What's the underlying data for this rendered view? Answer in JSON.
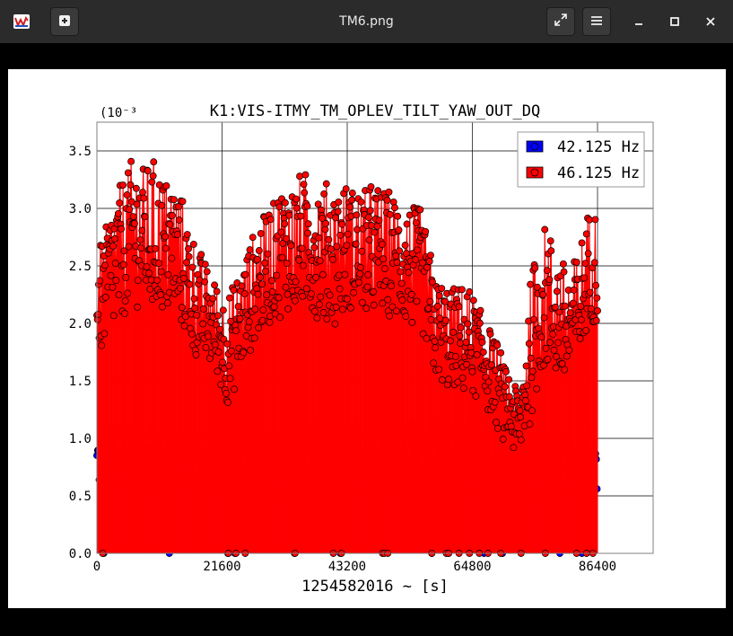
{
  "window": {
    "title": "TM6.png",
    "buttons": [
      "new-tab",
      "fullscreen",
      "menu",
      "minimize",
      "maximize",
      "close"
    ]
  },
  "chart_data": {
    "type": "scatter",
    "title": "K1:VIS-ITMY_TM_OPLEV_TILT_YAW_OUT_DQ",
    "xlabel": "1254582016 ~ [s]",
    "ylabel": "",
    "y_multiplier": "(10⁻³",
    "xlim": [
      0,
      96000
    ],
    "ylim": [
      0,
      0.00375
    ],
    "xticks": [
      "0",
      "21600",
      "43200",
      "64800",
      "86400"
    ],
    "xtick_values": [
      0,
      21600,
      43200,
      64800,
      86400
    ],
    "yticks": [
      "0.0",
      "0.5",
      "1.0",
      "1.5",
      "2.0",
      "2.5",
      "3.0",
      "3.5"
    ],
    "ytick_values": [
      0,
      0.0005,
      0.001,
      0.0015,
      0.002,
      0.0025,
      0.003,
      0.0035
    ],
    "grid": true,
    "legend_position": "top-right",
    "stem": true,
    "series": [
      {
        "name": "42.125 Hz",
        "color": "#0000ff",
        "envelope": [
          [
            0,
            0.00052,
            0.00105
          ],
          [
            4000,
            0.00048,
            0.0011
          ],
          [
            8000,
            0.0005,
            0.00108
          ],
          [
            12000,
            0.00045,
            0.00105
          ],
          [
            16000,
            0.00042,
            0.001
          ],
          [
            20000,
            0.0004,
            0.00098
          ],
          [
            24000,
            0.00038,
            0.00095
          ],
          [
            28000,
            0.00045,
            0.001
          ],
          [
            32000,
            0.0005,
            0.00105
          ],
          [
            36000,
            0.00052,
            0.00108
          ],
          [
            40000,
            0.00055,
            0.00112
          ],
          [
            44000,
            0.00055,
            0.00112
          ],
          [
            48000,
            0.00052,
            0.0011
          ],
          [
            52000,
            0.00055,
            0.00112
          ],
          [
            56000,
            0.00055,
            0.00115
          ],
          [
            60000,
            0.00052,
            0.00112
          ],
          [
            64000,
            0.0005,
            0.0011
          ],
          [
            68000,
            0.00045,
            0.00105
          ],
          [
            72000,
            0.0004,
            0.00095
          ],
          [
            76000,
            0.00045,
            0.001
          ],
          [
            80000,
            0.0005,
            0.00105
          ],
          [
            84000,
            0.0005,
            0.00105
          ],
          [
            86400,
            0.0005,
            0.00105
          ]
        ],
        "zero_dropouts": [
          1200,
          12500,
          22600,
          23800,
          34100,
          42000,
          57800,
          60700,
          66800,
          70000,
          79900,
          83700
        ]
      },
      {
        "name": "46.125 Hz",
        "color": "#ff0000",
        "envelope": [
          [
            0,
            0.0017,
            0.0026
          ],
          [
            3000,
            0.0019,
            0.0031
          ],
          [
            6000,
            0.0022,
            0.0034
          ],
          [
            10000,
            0.0021,
            0.0034
          ],
          [
            14000,
            0.002,
            0.0032
          ],
          [
            17000,
            0.0017,
            0.0027
          ],
          [
            20000,
            0.0016,
            0.0024
          ],
          [
            22500,
            0.0013,
            0.0022
          ],
          [
            25000,
            0.0016,
            0.0025
          ],
          [
            28000,
            0.0019,
            0.0029
          ],
          [
            32000,
            0.0021,
            0.0032
          ],
          [
            36000,
            0.0021,
            0.0033
          ],
          [
            40000,
            0.002,
            0.0032
          ],
          [
            44000,
            0.0021,
            0.0032
          ],
          [
            48000,
            0.0021,
            0.0032
          ],
          [
            52000,
            0.002,
            0.0031
          ],
          [
            56000,
            0.0019,
            0.003
          ],
          [
            58500,
            0.0015,
            0.0024
          ],
          [
            61000,
            0.0014,
            0.0023
          ],
          [
            64000,
            0.0014,
            0.0023
          ],
          [
            67000,
            0.0013,
            0.0021
          ],
          [
            70000,
            0.001,
            0.0017
          ],
          [
            73000,
            0.0008,
            0.0014
          ],
          [
            75000,
            0.0012,
            0.0025
          ],
          [
            77000,
            0.0016,
            0.0029
          ],
          [
            79000,
            0.0015,
            0.0027
          ],
          [
            81000,
            0.0014,
            0.0025
          ],
          [
            83000,
            0.0016,
            0.0026
          ],
          [
            85000,
            0.002,
            0.003
          ],
          [
            86400,
            0.002,
            0.003
          ]
        ],
        "zero_dropouts": [
          1000,
          22700,
          24000,
          25600,
          34200,
          40800,
          42200,
          49300,
          49600,
          50200,
          57800,
          60300,
          60700,
          62500,
          64300,
          66000,
          67500,
          69700,
          73200,
          77400,
          82800,
          84500,
          85600
        ]
      }
    ]
  }
}
